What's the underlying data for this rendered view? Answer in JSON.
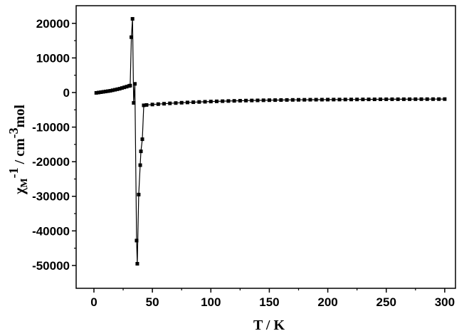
{
  "chart_data": {
    "type": "line",
    "x_label": "T / K",
    "y_label": {
      "base": "χ",
      "sub": "M",
      "sup": "-1",
      "unit": " / cm",
      "unit_sup": "-3",
      "unit_tail": "mol"
    },
    "x": [
      2,
      4,
      6,
      8,
      10,
      12,
      14,
      16,
      18,
      20,
      22,
      24,
      26,
      28,
      30,
      31,
      32,
      33,
      34,
      35,
      36.5,
      37.1,
      38.3,
      39.6,
      40.2,
      41.4,
      42.6,
      45,
      50,
      55,
      60,
      65,
      70,
      75,
      80,
      85,
      90,
      95,
      100,
      105,
      110,
      115,
      120,
      125,
      130,
      135,
      140,
      145,
      150,
      155,
      160,
      165,
      170,
      175,
      180,
      185,
      190,
      195,
      200,
      205,
      210,
      215,
      220,
      225,
      230,
      235,
      240,
      245,
      250,
      255,
      260,
      265,
      270,
      275,
      280,
      285,
      290,
      295,
      300
    ],
    "series": [
      {
        "color": "#000000",
        "marker": "square",
        "values": [
          -100,
          0,
          100,
          200,
          300,
          400,
          500,
          650,
          800,
          950,
          1100,
          1300,
          1500,
          1700,
          1900,
          2000,
          16000,
          21300,
          -3000,
          2500,
          -42800,
          -49500,
          -29500,
          -21000,
          -17000,
          -13500,
          -3700,
          -3600,
          -3470,
          -3350,
          -3240,
          -3130,
          -3040,
          -2950,
          -2870,
          -2800,
          -2730,
          -2670,
          -2600,
          -2550,
          -2500,
          -2450,
          -2410,
          -2370,
          -2330,
          -2300,
          -2270,
          -2240,
          -2210,
          -2190,
          -2170,
          -2150,
          -2130,
          -2110,
          -2100,
          -2080,
          -2070,
          -2060,
          -2050,
          -2040,
          -2030,
          -2020,
          -2010,
          -2000,
          -1990,
          -1980,
          -1970,
          -1960,
          -1950,
          -1945,
          -1940,
          -1935,
          -1930,
          -1925,
          -1920,
          -1915,
          -1910,
          -1905,
          -1900
        ]
      }
    ],
    "xlim": [
      -15.2,
      309.2
    ],
    "ylim": [
      -56600,
      25100
    ],
    "xticks": [
      0,
      50,
      100,
      150,
      200,
      250,
      300
    ],
    "yticks": [
      -50000,
      -40000,
      -30000,
      -20000,
      -10000,
      0,
      10000,
      20000
    ],
    "grid": false
  }
}
